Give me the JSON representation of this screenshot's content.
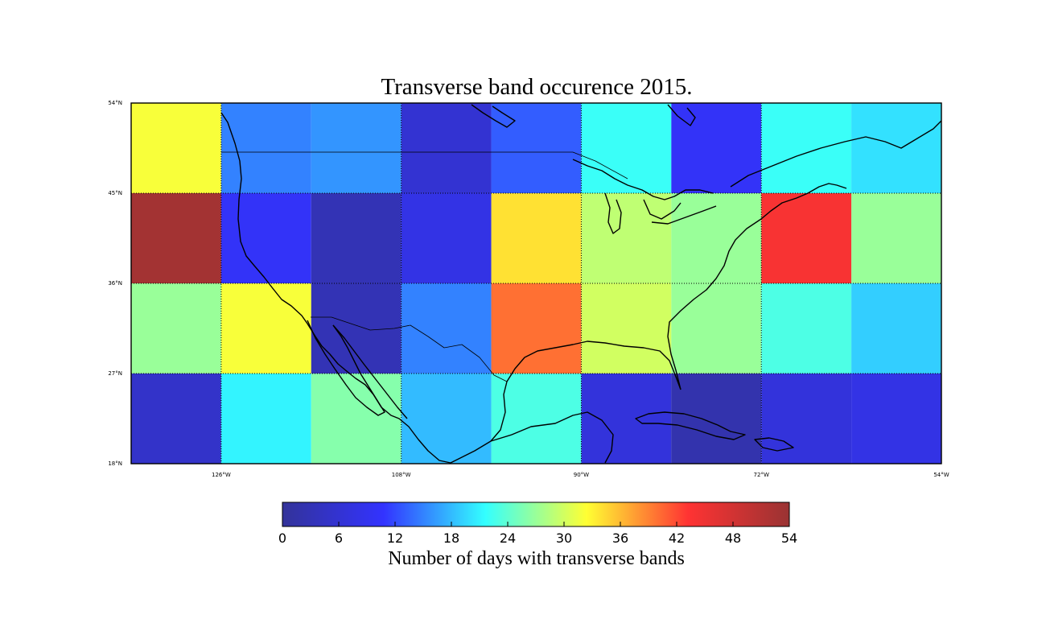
{
  "title": "Transverse band occurence 2015.",
  "map_extent": {
    "lon": [
      -135,
      -54
    ],
    "lat": [
      18,
      54
    ]
  },
  "lat_labels": [
    {
      "value": 54,
      "text": "54°N"
    },
    {
      "value": 45,
      "text": "45°N"
    },
    {
      "value": 36,
      "text": "36°N"
    },
    {
      "value": 27,
      "text": "27°N"
    },
    {
      "value": 18,
      "text": "18°N"
    }
  ],
  "lon_labels": [
    {
      "value": -126,
      "text": "126°W"
    },
    {
      "value": -108,
      "text": "108°W"
    },
    {
      "value": -90,
      "text": "90°W"
    },
    {
      "value": -72,
      "text": "72°W"
    },
    {
      "value": -54,
      "text": "54°W"
    }
  ],
  "chart_data": {
    "type": "heatmap",
    "title": "Transverse band occurence 2015.",
    "lon_edges": [
      -135,
      -126,
      -117,
      -108,
      -99,
      -90,
      -81,
      -72,
      -63,
      -54
    ],
    "lat_edges": [
      54,
      45,
      36,
      27,
      18
    ],
    "values": [
      [
        32,
        15,
        16,
        6,
        13,
        22,
        10,
        22,
        20
      ],
      [
        53,
        10,
        3,
        8,
        34,
        29,
        27,
        44,
        27
      ],
      [
        27,
        32,
        3,
        15,
        40,
        30,
        27,
        23,
        19
      ],
      [
        5,
        21,
        26,
        18,
        23,
        7,
        2,
        7,
        8
      ]
    ],
    "colorbar": {
      "range": [
        0,
        54
      ],
      "ticks": [
        "0",
        "6",
        "12",
        "18",
        "24",
        "30",
        "36",
        "42",
        "48",
        "54"
      ],
      "label": "Number of days with transverse bands",
      "colormap": "jet"
    }
  },
  "colormap_stops": [
    "#000080",
    "#0000ff",
    "#00ffff",
    "#ffff00",
    "#ff0000",
    "#800000"
  ],
  "colors": {
    "coastline": "#000000",
    "gridline": "#000000"
  }
}
